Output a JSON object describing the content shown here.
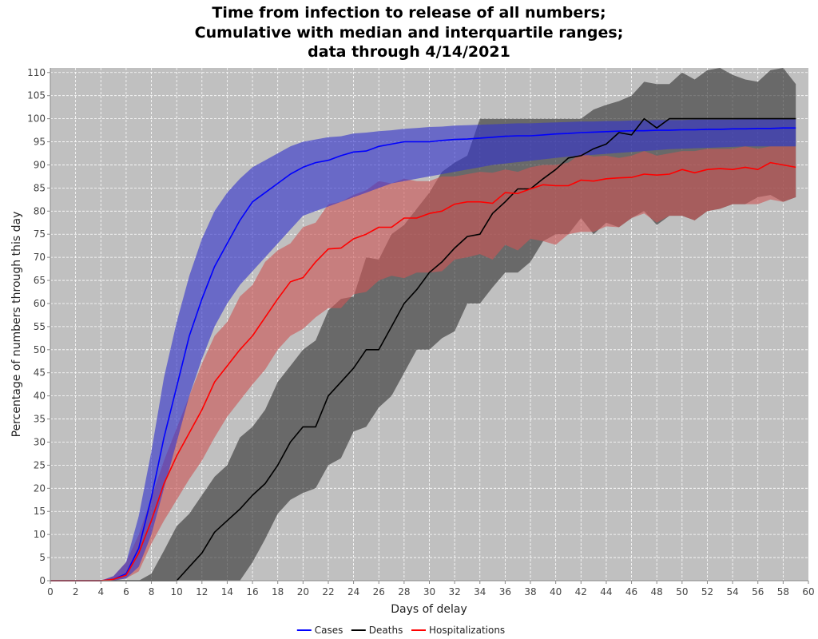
{
  "chart_data": {
    "type": "line",
    "title_lines": [
      "Time from infection to release of all numbers;",
      "Cumulative with median and interquartile ranges;",
      "data through 4/14/2021"
    ],
    "xlabel": "Days of delay",
    "ylabel": "Percentage of numbers through this day",
    "xlim": [
      0,
      60
    ],
    "ylim": [
      0,
      111
    ],
    "xticks": [
      0,
      2,
      4,
      6,
      8,
      10,
      12,
      14,
      16,
      18,
      20,
      22,
      24,
      26,
      28,
      30,
      32,
      34,
      36,
      38,
      40,
      42,
      44,
      46,
      48,
      50,
      52,
      54,
      56,
      58,
      60
    ],
    "yticks": [
      0,
      5,
      10,
      15,
      20,
      25,
      30,
      35,
      40,
      45,
      50,
      55,
      60,
      65,
      70,
      75,
      80,
      85,
      90,
      95,
      100,
      105,
      110
    ],
    "grid": true,
    "legend_position": "bottom-center",
    "colors": {
      "plot_background": "#c0c0c0",
      "grid": "#ffffff",
      "cases": "#0000ff",
      "deaths": "#000000",
      "hospitalizations": "#ff0000"
    },
    "series": [
      {
        "name": "Cases",
        "color": "#0000ff",
        "band_color": "#3333cc",
        "x": [
          0,
          1,
          2,
          3,
          4,
          5,
          6,
          7,
          8,
          9,
          10,
          11,
          12,
          13,
          14,
          15,
          16,
          17,
          18,
          19,
          20,
          21,
          22,
          23,
          24,
          25,
          26,
          27,
          28,
          29,
          30,
          31,
          32,
          33,
          34,
          35,
          36,
          37,
          38,
          39,
          40,
          41,
          42,
          43,
          44,
          45,
          46,
          47,
          48,
          49,
          50,
          51,
          52,
          53,
          54,
          55,
          56,
          57,
          58,
          59
        ],
        "median": [
          0,
          0,
          0,
          0,
          0,
          0.3,
          1.5,
          7,
          18,
          31,
          42,
          53,
          61,
          68,
          73,
          78,
          82,
          84,
          86,
          88,
          89.5,
          90.5,
          91,
          92,
          92.8,
          93,
          94,
          94.5,
          95,
          95,
          95,
          95.3,
          95.5,
          95.6,
          95.8,
          96,
          96.2,
          96.3,
          96.3,
          96.5,
          96.7,
          96.8,
          97,
          97.1,
          97.2,
          97.3,
          97.4,
          97.4,
          97.5,
          97.5,
          97.6,
          97.6,
          97.7,
          97.7,
          97.8,
          97.8,
          97.9,
          97.9,
          98,
          98
        ],
        "q1": [
          0,
          0,
          0,
          0,
          0,
          0,
          0.5,
          3,
          10,
          20,
          30,
          40,
          48,
          55,
          60,
          64,
          67,
          70,
          73,
          76,
          79,
          80,
          81,
          82,
          83,
          84,
          85,
          86,
          86.5,
          87,
          87.5,
          88,
          88.5,
          89,
          89.5,
          90,
          90.3,
          90.6,
          90.9,
          91.2,
          91.5,
          91.8,
          92,
          92.2,
          92.4,
          92.6,
          92.8,
          93,
          93.2,
          93.4,
          93.5,
          93.6,
          93.7,
          93.8,
          93.9,
          94,
          94,
          94,
          94,
          94
        ],
        "q3": [
          0,
          0,
          0,
          0,
          0,
          1,
          4,
          14,
          28,
          44,
          56,
          66,
          74,
          80,
          84,
          87,
          89.5,
          91,
          92.5,
          94,
          95,
          95.5,
          96,
          96.2,
          96.8,
          97,
          97.3,
          97.5,
          97.8,
          98,
          98.2,
          98.3,
          98.5,
          98.6,
          98.7,
          98.8,
          98.9,
          99,
          99,
          99.1,
          99.2,
          99.3,
          99.4,
          99.4,
          99.5,
          99.5,
          99.6,
          99.6,
          99.7,
          99.7,
          99.7,
          99.8,
          99.8,
          99.8,
          99.8,
          99.9,
          99.9,
          99.9,
          99.9,
          99.9
        ]
      },
      {
        "name": "Deaths",
        "color": "#000000",
        "band_color": "#333333",
        "x": [
          0,
          1,
          2,
          3,
          4,
          5,
          6,
          7,
          8,
          9,
          10,
          11,
          12,
          13,
          14,
          15,
          16,
          17,
          18,
          19,
          20,
          21,
          22,
          23,
          24,
          25,
          26,
          27,
          28,
          29,
          30,
          31,
          32,
          33,
          34,
          35,
          36,
          37,
          38,
          39,
          40,
          41,
          42,
          43,
          44,
          45,
          46,
          47,
          48,
          49,
          50,
          51,
          52,
          53,
          54,
          55,
          56,
          57,
          58,
          59
        ],
        "median": [
          0,
          0,
          0,
          0,
          0,
          0,
          0,
          0,
          0,
          0,
          0,
          3,
          6,
          10.5,
          13,
          15.5,
          18.5,
          21,
          25,
          30,
          33.3,
          33.3,
          40,
          43,
          46,
          50,
          50,
          55,
          60,
          63,
          66.7,
          69,
          72,
          74.5,
          75,
          79.5,
          82,
          84.8,
          84.8,
          87,
          89,
          91.5,
          92,
          93.5,
          94.5,
          97,
          96.5,
          100,
          98,
          100,
          100,
          100,
          100,
          100,
          100,
          100,
          100,
          100,
          100,
          100
        ],
        "q1": [
          0,
          0,
          0,
          0,
          0,
          0,
          0,
          0,
          0,
          0,
          0,
          0,
          0,
          0,
          0,
          0,
          4,
          9,
          14.5,
          17.5,
          19,
          20,
          25,
          26.5,
          32.3,
          33.3,
          37.5,
          40,
          45,
          50,
          50,
          52.5,
          54,
          60,
          60,
          63.5,
          66.7,
          66.7,
          69,
          73.5,
          75,
          75,
          78.5,
          75,
          77.5,
          76.5,
          78.5,
          80,
          77,
          79,
          79,
          78,
          80,
          80.5,
          81.5,
          81.5,
          83,
          83.5,
          82,
          83
        ],
        "q3": [
          0,
          0,
          0,
          0,
          0,
          0,
          0,
          0,
          1.5,
          6.5,
          11.8,
          14.5,
          18.5,
          22.5,
          25,
          31,
          33.3,
          37,
          43,
          46.5,
          50,
          52,
          58.5,
          61,
          61.5,
          70,
          69.5,
          75,
          77,
          80.5,
          84,
          88.5,
          90.5,
          92,
          100,
          100,
          100,
          100,
          100,
          100,
          100,
          100,
          100,
          102,
          103,
          103.8,
          105,
          108,
          107.5,
          107.5,
          110,
          108.5,
          110.5,
          111,
          109.5,
          108.5,
          108,
          110.5,
          111,
          107.5
        ]
      },
      {
        "name": "Hospitalizations",
        "color": "#ff0000",
        "band_color": "#cc5555",
        "x": [
          0,
          1,
          2,
          3,
          4,
          5,
          6,
          7,
          8,
          9,
          10,
          11,
          12,
          13,
          14,
          15,
          16,
          17,
          18,
          19,
          20,
          21,
          22,
          23,
          24,
          25,
          26,
          27,
          28,
          29,
          30,
          31,
          32,
          33,
          34,
          35,
          36,
          37,
          38,
          39,
          40,
          41,
          42,
          43,
          44,
          45,
          46,
          47,
          48,
          49,
          50,
          51,
          52,
          53,
          54,
          55,
          56,
          57,
          58,
          59
        ],
        "median": [
          0,
          0,
          0,
          0,
          0,
          0.3,
          1.2,
          6,
          13,
          21,
          27,
          32,
          37,
          43,
          46.5,
          50,
          53,
          57,
          61,
          64.7,
          65.6,
          69,
          71.8,
          72,
          74,
          75,
          76.5,
          76.5,
          78.5,
          78.5,
          79.5,
          80,
          81.5,
          82,
          82,
          81.7,
          84,
          83.8,
          84.8,
          85.7,
          85.5,
          85.5,
          86.7,
          86.5,
          87,
          87.2,
          87.3,
          88,
          87.8,
          88,
          89,
          88.3,
          89,
          89.2,
          89,
          89.5,
          89,
          90.5,
          90,
          89.5
        ],
        "q1": [
          0,
          0,
          0,
          0,
          0,
          0,
          0.5,
          2,
          8,
          13,
          17.5,
          22,
          26,
          31,
          35.5,
          39,
          42.5,
          45.7,
          50,
          53,
          54.5,
          57,
          59,
          59,
          62,
          62.5,
          65,
          66,
          65.5,
          66.7,
          66.7,
          67,
          69.5,
          70,
          70.7,
          69.5,
          72.7,
          71.5,
          74,
          73.5,
          72.7,
          75,
          75.5,
          75.5,
          76.7,
          76.5,
          78.5,
          79.5,
          77.5,
          79,
          79,
          78,
          80,
          80.5,
          81.5,
          81.5,
          81.5,
          82.5,
          82,
          83
        ],
        "q3": [
          0,
          0,
          0,
          0,
          0,
          1,
          4,
          10,
          18,
          26,
          33,
          40,
          47,
          53,
          56,
          61.5,
          64,
          69,
          71.5,
          73,
          76.5,
          77.5,
          81.5,
          82,
          83.5,
          84.5,
          86.5,
          86,
          87,
          86.5,
          86.5,
          87.5,
          87.5,
          88,
          88.5,
          88.3,
          89,
          88.5,
          89.5,
          90,
          90,
          90.5,
          92.5,
          91.8,
          92,
          91.5,
          92,
          93,
          92,
          92.5,
          93,
          93,
          93.5,
          93.5,
          93.5,
          94,
          93.5,
          94,
          94,
          94
        ]
      }
    ]
  }
}
